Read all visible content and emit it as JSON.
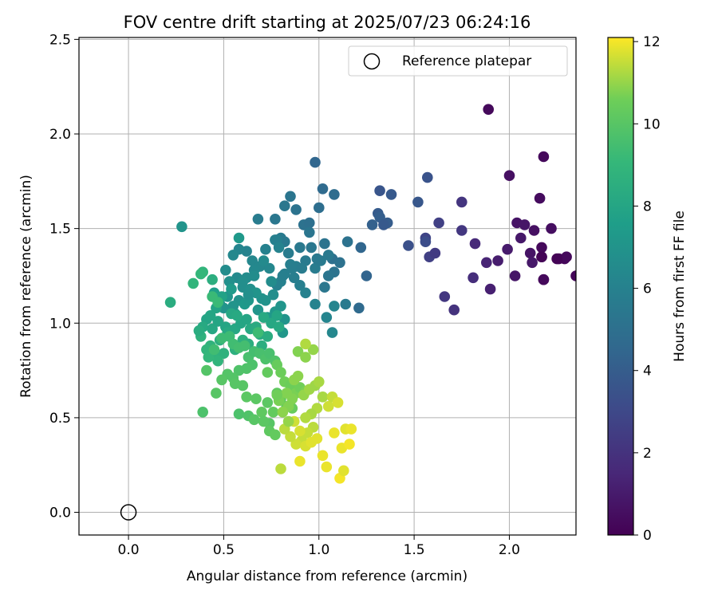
{
  "chart_data": {
    "type": "scatter",
    "title": "FOV centre drift starting at 2025/07/23 06:24:16",
    "xlabel": "Angular distance from reference (arcmin)",
    "ylabel": "Rotation from reference (arcmin)",
    "xlim": [
      -0.26,
      2.35
    ],
    "ylim": [
      -0.12,
      2.51
    ],
    "xticks": [
      "0.0",
      "0.5",
      "1.0",
      "1.5",
      "2.0"
    ],
    "xtick_values": [
      0.0,
      0.5,
      1.0,
      1.5,
      2.0
    ],
    "yticks": [
      "0.0",
      "0.5",
      "1.0",
      "1.5",
      "2.0",
      "2.5"
    ],
    "ytick_values": [
      0.0,
      0.5,
      1.0,
      1.5,
      2.0,
      2.5
    ],
    "grid": true,
    "legend": {
      "position": "top-right",
      "entries": [
        {
          "label": "Reference platepar",
          "marker": "open-circle"
        }
      ]
    },
    "colorbar": {
      "label": "Hours from first FF file",
      "colormap": "viridis",
      "range": [
        0,
        12.1
      ],
      "ticks": [
        "0",
        "2",
        "4",
        "6",
        "8",
        "10",
        "12"
      ],
      "tick_values": [
        0,
        2,
        4,
        6,
        8,
        10,
        12
      ]
    },
    "reference_point": {
      "x": 0.0,
      "y": 0.0
    },
    "series": [
      {
        "x": [
          1.89,
          2.18,
          2.0,
          2.16,
          2.17,
          2.17,
          2.22,
          2.18,
          2.04,
          2.11,
          2.13,
          2.17,
          2.26,
          2.29,
          2.3,
          2.35,
          2.25,
          2.18,
          2.06,
          1.9,
          2.03,
          1.94,
          1.99,
          2.12,
          2.08
        ],
        "y": [
          2.13,
          1.88,
          1.78,
          1.66,
          1.4,
          1.35,
          1.5,
          1.23,
          1.53,
          1.37,
          1.49,
          1.35,
          1.34,
          1.34,
          1.35,
          1.25,
          1.34,
          1.23,
          1.45,
          1.18,
          1.25,
          1.33,
          1.39,
          1.32,
          1.52
        ],
        "hours": [
          0.3,
          0.3,
          0.6,
          0.4,
          0.3,
          0.2,
          0.5,
          0.3,
          0.7,
          0.7,
          0.6,
          0.1,
          0.1,
          0.2,
          0.3,
          0.2,
          0.1,
          0.3,
          0.9,
          1.2,
          0.8,
          1.1,
          1.0,
          0.9,
          0.8
        ]
      },
      {
        "x": [
          1.82,
          1.88,
          1.81,
          1.75,
          1.63,
          1.66,
          1.71,
          1.56,
          1.58,
          1.61
        ],
        "y": [
          1.42,
          1.32,
          1.24,
          1.49,
          1.53,
          1.14,
          1.07,
          1.45,
          1.35,
          1.37
        ],
        "hours": [
          1.6,
          1.4,
          1.8,
          2.2,
          2.6,
          2.2,
          2.0,
          2.8,
          2.6,
          2.4
        ]
      },
      {
        "x": [
          1.75,
          1.57,
          1.52,
          1.56,
          1.47,
          1.32,
          1.38,
          1.31,
          1.36,
          1.32,
          1.28,
          1.34,
          1.22,
          1.25,
          1.21
        ],
        "y": [
          1.64,
          1.77,
          1.64,
          1.43,
          1.41,
          1.7,
          1.68,
          1.58,
          1.53,
          1.56,
          1.52,
          1.52,
          1.4,
          1.25,
          1.08
        ],
        "hours": [
          2.1,
          3.5,
          3.7,
          3.2,
          3.4,
          3.6,
          3.8,
          3.9,
          4.0,
          4.1,
          4.2,
          3.8,
          4.5,
          4.4,
          4.7
        ]
      },
      {
        "x": [
          0.98,
          1.02,
          1.08,
          1.15,
          1.07,
          1.03,
          1.0,
          1.08,
          1.03,
          1.05,
          1.11,
          1.14,
          0.92,
          0.95,
          0.88,
          0.85,
          0.82,
          0.77,
          0.8,
          0.82,
          0.9,
          0.93,
          0.98,
          1.01,
          1.05,
          0.95,
          0.88,
          0.84,
          0.85,
          0.82,
          0.8,
          0.78,
          0.81,
          0.86,
          0.87,
          0.9,
          0.93,
          0.98,
          1.04,
          1.07,
          1.08,
          0.91,
          0.96,
          0.99
        ],
        "y": [
          1.85,
          1.71,
          1.68,
          1.43,
          1.34,
          1.42,
          1.61,
          1.27,
          1.19,
          1.25,
          1.32,
          1.1,
          1.52,
          1.53,
          1.6,
          1.67,
          1.62,
          1.55,
          1.45,
          1.43,
          1.4,
          1.33,
          1.29,
          1.33,
          1.36,
          1.48,
          1.3,
          1.37,
          1.31,
          1.26,
          1.22,
          1.2,
          1.25,
          1.29,
          1.24,
          1.2,
          1.16,
          1.1,
          1.03,
          0.95,
          1.09,
          1.29,
          1.4,
          1.34
        ],
        "hours": [
          4.5,
          4.7,
          4.8,
          5.1,
          5.0,
          5.2,
          4.9,
          5.2,
          5.4,
          5.3,
          5.1,
          5.6,
          5.1,
          5.0,
          5.2,
          5.3,
          5.4,
          5.4,
          5.6,
          5.5,
          5.5,
          5.6,
          5.7,
          5.6,
          5.5,
          5.3,
          5.8,
          5.7,
          5.9,
          5.9,
          6.0,
          6.0,
          5.9,
          5.8,
          5.8,
          5.9,
          6.0,
          6.1,
          6.2,
          6.3,
          6.2,
          5.7,
          5.4,
          5.5
        ]
      },
      {
        "x": [
          0.68,
          0.77,
          0.72,
          0.62,
          0.65,
          0.58,
          0.55,
          0.69,
          0.74,
          0.78,
          0.79,
          0.66,
          0.71,
          0.62,
          0.57,
          0.51,
          0.53,
          0.6,
          0.64,
          0.7,
          0.75,
          0.76,
          0.72,
          0.67,
          0.58,
          0.55,
          0.52,
          0.48,
          0.5,
          0.56,
          0.61,
          0.63,
          0.68,
          0.73,
          0.77,
          0.8,
          0.82,
          0.81,
          0.6,
          0.63,
          0.66
        ],
        "y": [
          1.55,
          1.44,
          1.39,
          1.38,
          1.33,
          1.39,
          1.36,
          1.3,
          1.29,
          1.44,
          1.4,
          1.28,
          1.33,
          1.24,
          1.24,
          1.28,
          1.22,
          1.19,
          1.18,
          1.13,
          1.22,
          1.15,
          1.12,
          1.16,
          1.12,
          1.09,
          1.14,
          1.1,
          1.08,
          1.05,
          1.1,
          1.12,
          1.07,
          1.03,
          1.06,
          1.09,
          1.02,
          0.95,
          1.22,
          1.15,
          1.25
        ],
        "hours": [
          5.7,
          6.0,
          6.0,
          6.1,
          6.3,
          6.2,
          6.4,
          6.3,
          6.3,
          5.9,
          6.1,
          6.4,
          6.5,
          6.6,
          6.5,
          6.6,
          6.8,
          6.7,
          6.8,
          6.9,
          6.6,
          6.7,
          6.9,
          7.0,
          6.9,
          7.0,
          7.1,
          7.1,
          7.0,
          7.2,
          7.3,
          7.2,
          7.1,
          7.3,
          7.2,
          7.1,
          7.0,
          7.2,
          6.7,
          6.8,
          6.6
        ]
      },
      {
        "x": [
          0.28,
          0.58,
          0.45,
          0.54,
          0.49,
          0.46,
          0.41,
          0.43,
          0.39,
          0.44,
          0.47,
          0.51,
          0.52,
          0.56,
          0.59,
          0.62,
          0.64,
          0.67,
          0.69,
          0.71,
          0.75,
          0.78,
          0.79,
          0.73,
          0.7,
          0.63,
          0.6,
          0.56,
          0.53,
          0.48,
          0.43,
          0.38,
          0.41,
          0.46,
          0.5,
          0.47,
          0.42,
          0.37,
          0.39,
          0.44,
          0.54,
          0.57
        ],
        "y": [
          1.51,
          1.45,
          1.16,
          1.18,
          1.14,
          1.08,
          1.02,
          1.04,
          0.98,
          0.97,
          1.01,
          0.98,
          0.95,
          0.97,
          1.0,
          1.02,
          0.97,
          0.98,
          0.94,
          1.03,
          1.0,
          1.04,
          0.98,
          0.93,
          0.88,
          0.89,
          0.91,
          0.86,
          0.93,
          0.91,
          0.88,
          0.93,
          0.86,
          0.83,
          0.84,
          0.8,
          0.82,
          0.96,
          1.27,
          1.23,
          1.05,
          1.04
        ],
        "hours": [
          7.0,
          7.3,
          7.6,
          7.4,
          7.8,
          7.9,
          7.9,
          8.0,
          8.2,
          8.1,
          8.0,
          8.0,
          8.2,
          8.1,
          8.0,
          8.0,
          8.2,
          8.3,
          8.3,
          8.2,
          8.1,
          8.0,
          8.2,
          8.4,
          8.5,
          8.5,
          8.6,
          8.6,
          8.5,
          8.6,
          8.8,
          8.7,
          8.9,
          8.8,
          8.7,
          8.9,
          9.0,
          8.4,
          8.9,
          8.5,
          8.1,
          8.2
        ]
      },
      {
        "x": [
          0.22,
          0.34,
          0.38,
          0.44,
          0.47,
          0.49,
          0.45,
          0.53,
          0.55,
          0.58,
          0.61,
          0.63,
          0.66,
          0.69,
          0.72,
          0.74,
          0.77,
          0.65,
          0.62,
          0.58,
          0.55,
          0.52,
          0.49,
          0.46,
          0.41,
          0.39,
          0.56,
          0.6,
          0.62,
          0.67,
          0.7,
          0.73,
          0.76,
          0.78,
          0.74,
          0.71,
          0.8,
          0.83,
          0.86,
          0.58,
          0.63,
          0.66,
          0.74,
          0.77,
          0.68
        ],
        "y": [
          1.11,
          1.21,
          1.26,
          1.14,
          1.11,
          0.92,
          0.86,
          0.93,
          0.89,
          0.87,
          0.88,
          0.82,
          0.85,
          0.84,
          0.81,
          0.84,
          0.8,
          0.78,
          0.76,
          0.75,
          0.71,
          0.73,
          0.7,
          0.63,
          0.75,
          0.53,
          0.68,
          0.67,
          0.61,
          0.6,
          0.53,
          0.58,
          0.53,
          0.63,
          0.47,
          0.48,
          0.6,
          0.56,
          0.55,
          0.52,
          0.51,
          0.49,
          0.43,
          0.41,
          0.95
        ],
        "hours": [
          8.4,
          8.9,
          9.0,
          9.2,
          9.2,
          9.3,
          9.4,
          9.3,
          9.4,
          9.5,
          9.5,
          9.6,
          9.5,
          9.6,
          9.7,
          9.6,
          9.8,
          9.7,
          9.8,
          9.8,
          9.9,
          9.9,
          10.0,
          10.0,
          9.9,
          9.7,
          10.0,
          10.0,
          10.1,
          10.1,
          10.2,
          10.1,
          10.3,
          10.2,
          10.0,
          10.1,
          10.3,
          10.4,
          10.4,
          9.7,
          9.8,
          10.0,
          10.2,
          10.3,
          9.3
        ]
      },
      {
        "x": [
          0.73,
          0.78,
          0.8,
          0.82,
          0.85,
          0.88,
          0.9,
          0.93,
          0.86,
          0.84,
          0.81,
          0.79,
          0.83,
          0.87,
          0.89,
          0.92,
          0.95,
          0.98,
          1.0,
          1.02,
          0.99,
          0.96,
          0.93,
          0.97,
          0.94,
          0.91,
          0.88,
          0.85,
          0.82,
          0.87,
          0.9,
          0.93,
          0.96,
          0.99,
          1.02,
          1.05,
          1.07,
          1.1,
          1.14,
          1.12,
          1.16,
          1.08,
          1.11,
          1.17,
          0.8,
          0.84,
          0.78
        ],
        "y": [
          0.74,
          0.78,
          0.74,
          0.69,
          0.67,
          0.63,
          0.66,
          0.64,
          0.6,
          0.56,
          0.53,
          0.59,
          0.63,
          0.7,
          0.72,
          0.62,
          0.65,
          0.67,
          0.69,
          0.61,
          0.55,
          0.52,
          0.5,
          0.45,
          0.42,
          0.38,
          0.36,
          0.4,
          0.44,
          0.48,
          0.43,
          0.35,
          0.37,
          0.39,
          0.3,
          0.56,
          0.61,
          0.58,
          0.44,
          0.34,
          0.36,
          0.42,
          0.18,
          0.44,
          0.23,
          0.48,
          0.62
        ],
        "hours": [
          10.3,
          10.4,
          10.5,
          10.6,
          10.5,
          10.7,
          10.6,
          10.7,
          10.8,
          10.8,
          10.9,
          10.7,
          10.8,
          10.9,
          10.9,
          11.0,
          11.1,
          11.1,
          11.2,
          11.2,
          11.3,
          11.2,
          11.3,
          11.4,
          11.5,
          11.5,
          11.6,
          11.5,
          11.4,
          11.6,
          11.7,
          11.7,
          11.8,
          11.8,
          11.9,
          11.6,
          11.5,
          11.7,
          11.8,
          11.9,
          12.0,
          11.9,
          12.0,
          11.9,
          11.4,
          11.0,
          10.6
        ]
      },
      {
        "x": [
          0.97,
          1.04,
          1.13,
          0.89,
          0.93,
          0.9,
          0.93
        ],
        "y": [
          0.86,
          0.24,
          0.22,
          0.85,
          0.82,
          0.27,
          0.89
        ],
        "hours": [
          11.0,
          11.9,
          11.8,
          10.8,
          10.9,
          11.9,
          11.3
        ]
      }
    ]
  }
}
